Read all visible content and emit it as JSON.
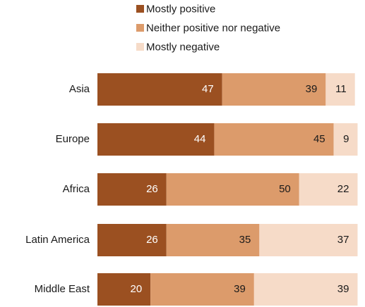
{
  "chart_data": {
    "type": "bar",
    "orientation": "horizontal",
    "stacked": true,
    "categories": [
      "Asia",
      "Europe",
      "Africa",
      "Latin America",
      "Middle East"
    ],
    "series": [
      {
        "name": "Mostly positive",
        "values": [
          47,
          44,
          26,
          26,
          20
        ],
        "color": "#9b5021",
        "label_color": "#ffffff"
      },
      {
        "name": "Neither positive nor negative",
        "values": [
          39,
          45,
          50,
          35,
          39
        ],
        "color": "#dc9b6b",
        "label_color": "#1a1a1a"
      },
      {
        "name": "Mostly negative",
        "values": [
          11,
          9,
          22,
          37,
          39
        ],
        "color": "#f6dbc8",
        "label_color": "#1a1a1a"
      }
    ],
    "legend_position": "top",
    "xlim": [
      0,
      100
    ],
    "grid": false
  }
}
